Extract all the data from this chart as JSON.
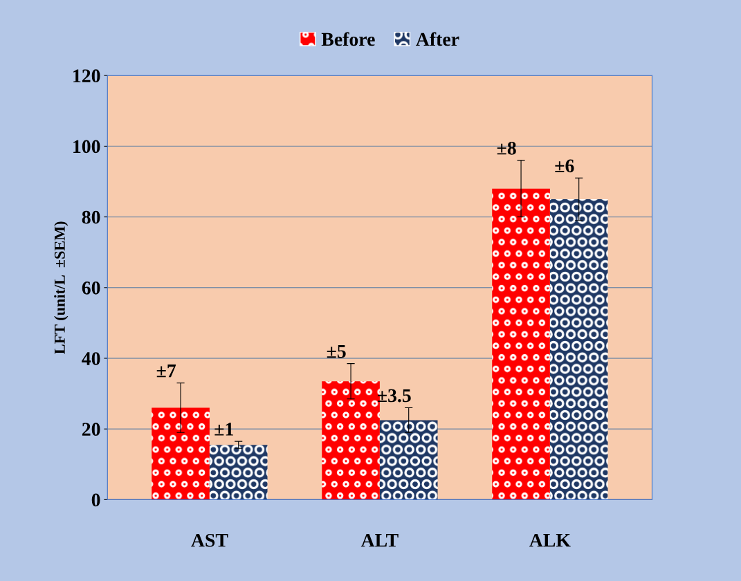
{
  "chart_data": {
    "type": "bar",
    "ylabel": "LFT (unit/L  ±SEM)",
    "categories": [
      "AST",
      "ALT",
      "ALK"
    ],
    "series": [
      {
        "name": "Before",
        "color": "#ff0000",
        "values": [
          26,
          33.5,
          88
        ],
        "errors": [
          7,
          5,
          8
        ]
      },
      {
        "name": "After",
        "color": "#1f3864",
        "values": [
          15.5,
          22.5,
          85
        ],
        "errors": [
          1,
          3.5,
          6
        ]
      }
    ],
    "annotations": [
      "±7",
      "±1",
      "±5",
      "±3.5",
      "±8",
      "±6"
    ],
    "ylim": [
      0,
      120
    ],
    "yticks": [
      0,
      20,
      40,
      60,
      80,
      100,
      120
    ],
    "grid": "y",
    "legend": "top"
  }
}
